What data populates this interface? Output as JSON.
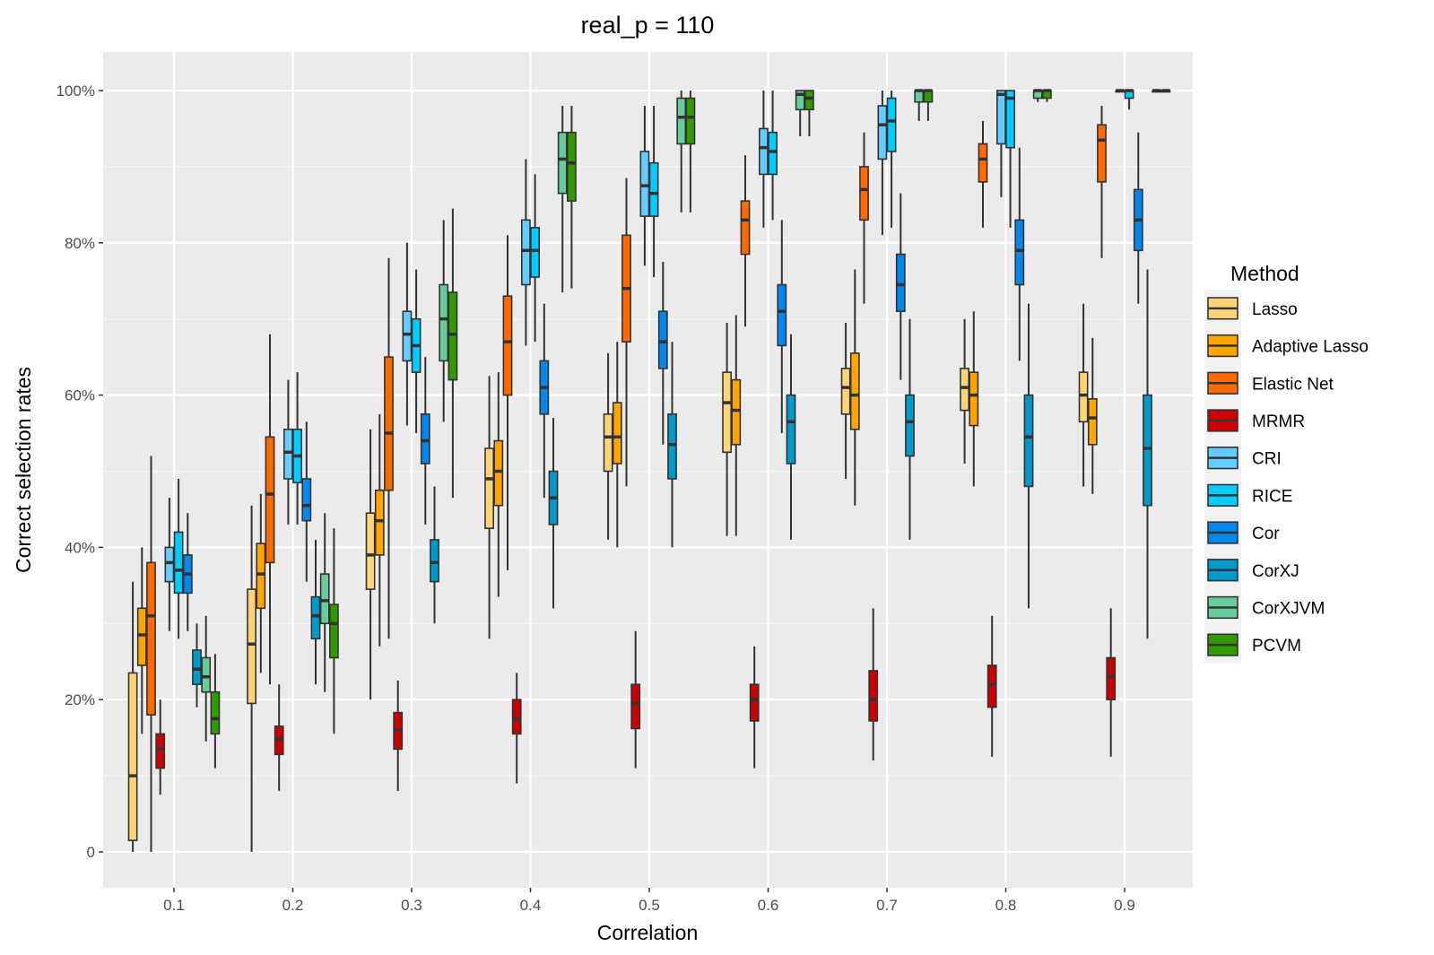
{
  "chart_data": {
    "type": "boxplot",
    "title": "real_p = 110",
    "xlabel": "Correlation",
    "ylabel": "Correct selection rates",
    "categories": [
      "0.1",
      "0.2",
      "0.3",
      "0.4",
      "0.5",
      "0.6",
      "0.7",
      "0.8",
      "0.9"
    ],
    "y_ticks": [
      0,
      20,
      40,
      60,
      80,
      100
    ],
    "y_tick_labels": [
      "0",
      "20%",
      "40%",
      "60%",
      "80%",
      "100%"
    ],
    "ylim": [
      -5,
      105
    ],
    "grid": true,
    "legend": {
      "title": "Method",
      "position": "right"
    },
    "series": [
      {
        "name": "Lasso",
        "color": "#FFD479",
        "boxes": [
          {
            "min": 0,
            "q1": 1.5,
            "median": 10,
            "q3": 23.5,
            "max": 35.5
          },
          {
            "min": 0,
            "q1": 19.5,
            "median": 27.3,
            "q3": 34.5,
            "max": 45.5
          },
          {
            "min": 20,
            "q1": 34.5,
            "median": 39,
            "q3": 44.5,
            "max": 55.5
          },
          {
            "min": 28,
            "q1": 42.5,
            "median": 49,
            "q3": 53,
            "max": 62.5
          },
          {
            "min": 41,
            "q1": 50,
            "median": 54.5,
            "q3": 57.5,
            "max": 65.5
          },
          {
            "min": 41.5,
            "q1": 52.5,
            "median": 59,
            "q3": 63,
            "max": 69.5
          },
          {
            "min": 49,
            "q1": 57.5,
            "median": 61,
            "q3": 63.5,
            "max": 69.5
          },
          {
            "min": 51,
            "q1": 58,
            "median": 61,
            "q3": 63.5,
            "max": 70
          },
          {
            "min": 48,
            "q1": 56.5,
            "median": 60,
            "q3": 63,
            "max": 72
          }
        ]
      },
      {
        "name": "Adaptive Lasso",
        "color": "#FFA500",
        "boxes": [
          {
            "min": 15.5,
            "q1": 24.5,
            "median": 28.5,
            "q3": 32,
            "max": 40
          },
          {
            "min": 23.5,
            "q1": 32,
            "median": 36.5,
            "q3": 40.5,
            "max": 47
          },
          {
            "min": 27,
            "q1": 39,
            "median": 43.5,
            "q3": 47.5,
            "max": 57.5
          },
          {
            "min": 33.5,
            "q1": 45.5,
            "median": 50,
            "q3": 54,
            "max": 63
          },
          {
            "min": 40,
            "q1": 51,
            "median": 54.5,
            "q3": 59,
            "max": 67
          },
          {
            "min": 41.5,
            "q1": 53.5,
            "median": 58,
            "q3": 62,
            "max": 70.5
          },
          {
            "min": 45.5,
            "q1": 55.5,
            "median": 60,
            "q3": 65.5,
            "max": 76.5
          },
          {
            "min": 48,
            "q1": 56,
            "median": 60,
            "q3": 63,
            "max": 71
          },
          {
            "min": 47,
            "q1": 53.5,
            "median": 57,
            "q3": 59.5,
            "max": 67.5
          }
        ]
      },
      {
        "name": "Elastic Net",
        "color": "#FF6A00",
        "boxes": [
          {
            "min": 0,
            "q1": 18,
            "median": 31,
            "q3": 38,
            "max": 52
          },
          {
            "min": 22,
            "q1": 38,
            "median": 47,
            "q3": 54.5,
            "max": 68
          },
          {
            "min": 28,
            "q1": 47.5,
            "median": 55,
            "q3": 65,
            "max": 78
          },
          {
            "min": 37,
            "q1": 60,
            "median": 67,
            "q3": 73,
            "max": 81
          },
          {
            "min": 48,
            "q1": 67,
            "median": 74,
            "q3": 81,
            "max": 88.5
          },
          {
            "min": 69,
            "q1": 78.5,
            "median": 83,
            "q3": 85.5,
            "max": 91.5
          },
          {
            "min": 72,
            "q1": 83,
            "median": 87,
            "q3": 90,
            "max": 94.5
          },
          {
            "min": 82,
            "q1": 88,
            "median": 91,
            "q3": 93,
            "max": 96
          },
          {
            "min": 78,
            "q1": 88,
            "median": 93.5,
            "q3": 95.5,
            "max": 98
          }
        ]
      },
      {
        "name": "MRMR",
        "color": "#CC0000",
        "boxes": [
          {
            "min": 7.5,
            "q1": 11,
            "median": 13.5,
            "q3": 15.5,
            "max": 20
          },
          {
            "min": 8,
            "q1": 12.8,
            "median": 14.8,
            "q3": 16.5,
            "max": 22
          },
          {
            "min": 8,
            "q1": 13.5,
            "median": 16,
            "q3": 18.3,
            "max": 22.5
          },
          {
            "min": 9,
            "q1": 15.5,
            "median": 17.5,
            "q3": 20,
            "max": 23.5
          },
          {
            "min": 11,
            "q1": 16.2,
            "median": 19.5,
            "q3": 22,
            "max": 29
          },
          {
            "min": 11,
            "q1": 17.2,
            "median": 20,
            "q3": 22,
            "max": 27
          },
          {
            "min": 12,
            "q1": 17.2,
            "median": 20,
            "q3": 23.8,
            "max": 32
          },
          {
            "min": 12.5,
            "q1": 19,
            "median": 22,
            "q3": 24.5,
            "max": 31
          },
          {
            "min": 12.5,
            "q1": 20,
            "median": 23,
            "q3": 25.5,
            "max": 32
          }
        ]
      },
      {
        "name": "CRI",
        "color": "#66CCFF",
        "boxes": [
          {
            "min": 29,
            "q1": 35.5,
            "median": 38,
            "q3": 40,
            "max": 46.5
          },
          {
            "min": 43,
            "q1": 49,
            "median": 52.5,
            "q3": 55.5,
            "max": 62
          },
          {
            "min": 56,
            "q1": 64.5,
            "median": 68,
            "q3": 71,
            "max": 80
          },
          {
            "min": 66.5,
            "q1": 74.5,
            "median": 79,
            "q3": 83,
            "max": 91
          },
          {
            "min": 77,
            "q1": 83.5,
            "median": 87.5,
            "q3": 92,
            "max": 98
          },
          {
            "min": 82,
            "q1": 89,
            "median": 92.5,
            "q3": 95,
            "max": 100
          },
          {
            "min": 81,
            "q1": 91,
            "median": 95.5,
            "q3": 98,
            "max": 100
          },
          {
            "min": 86,
            "q1": 93,
            "median": 99.5,
            "q3": 100,
            "max": 100
          },
          {
            "min": 100,
            "q1": 100,
            "median": 100,
            "q3": 100,
            "max": 100
          }
        ]
      },
      {
        "name": "RICE",
        "color": "#00CCFF",
        "boxes": [
          {
            "min": 28,
            "q1": 34,
            "median": 37,
            "q3": 42,
            "max": 49
          },
          {
            "min": 43,
            "q1": 48.5,
            "median": 52,
            "q3": 55.5,
            "max": 63
          },
          {
            "min": 55,
            "q1": 63,
            "median": 66.5,
            "q3": 70,
            "max": 76.5
          },
          {
            "min": 67,
            "q1": 75.5,
            "median": 79,
            "q3": 82,
            "max": 89
          },
          {
            "min": 75.5,
            "q1": 83.5,
            "median": 86.5,
            "q3": 90.5,
            "max": 98
          },
          {
            "min": 83,
            "q1": 89,
            "median": 92,
            "q3": 94.5,
            "max": 100
          },
          {
            "min": 82,
            "q1": 92,
            "median": 96,
            "q3": 99,
            "max": 100
          },
          {
            "min": 82,
            "q1": 92.5,
            "median": 99,
            "q3": 100,
            "max": 100
          },
          {
            "min": 97.5,
            "q1": 99,
            "median": 100,
            "q3": 100,
            "max": 100
          }
        ]
      },
      {
        "name": "Cor",
        "color": "#0088EE",
        "boxes": [
          {
            "min": 29,
            "q1": 34,
            "median": 36.5,
            "q3": 39,
            "max": 44.5
          },
          {
            "min": 35.5,
            "q1": 43.5,
            "median": 45.5,
            "q3": 49,
            "max": 56.5
          },
          {
            "min": 43,
            "q1": 51,
            "median": 54,
            "q3": 57.5,
            "max": 65
          },
          {
            "min": 46.5,
            "q1": 57.5,
            "median": 61,
            "q3": 64.5,
            "max": 72
          },
          {
            "min": 53.5,
            "q1": 63.5,
            "median": 67,
            "q3": 71,
            "max": 77.5
          },
          {
            "min": 55,
            "q1": 66.5,
            "median": 71,
            "q3": 74.5,
            "max": 83
          },
          {
            "min": 62,
            "q1": 71,
            "median": 74.5,
            "q3": 78.5,
            "max": 86.5
          },
          {
            "min": 64.5,
            "q1": 74.5,
            "median": 79,
            "q3": 83,
            "max": 92.5
          },
          {
            "min": 72,
            "q1": 79,
            "median": 83,
            "q3": 87,
            "max": 94.5
          }
        ]
      },
      {
        "name": "CorXJ",
        "color": "#0099CC",
        "boxes": [
          {
            "min": 19,
            "q1": 22,
            "median": 24,
            "q3": 26.5,
            "max": 30
          },
          {
            "min": 22,
            "q1": 28,
            "median": 31,
            "q3": 33.5,
            "max": 41
          },
          {
            "min": 30,
            "q1": 35.5,
            "median": 38,
            "q3": 41,
            "max": 48
          },
          {
            "min": 32,
            "q1": 43,
            "median": 46.5,
            "q3": 50,
            "max": 57
          },
          {
            "min": 40,
            "q1": 49,
            "median": 53.5,
            "q3": 57.5,
            "max": 67
          },
          {
            "min": 41,
            "q1": 51,
            "median": 56.5,
            "q3": 60,
            "max": 68
          },
          {
            "min": 41,
            "q1": 52,
            "median": 56.5,
            "q3": 60,
            "max": 70
          },
          {
            "min": 32,
            "q1": 48,
            "median": 54.5,
            "q3": 60,
            "max": 72
          },
          {
            "min": 28,
            "q1": 45.5,
            "median": 53,
            "q3": 60,
            "max": 76.5
          }
        ]
      },
      {
        "name": "CorXJVM",
        "color": "#66CC99",
        "boxes": [
          {
            "min": 14.5,
            "q1": 21,
            "median": 23,
            "q3": 25.5,
            "max": 31
          },
          {
            "min": 21,
            "q1": 30,
            "median": 33,
            "q3": 36.5,
            "max": 44.5
          },
          {
            "min": 56.5,
            "q1": 64.5,
            "median": 70,
            "q3": 74.5,
            "max": 83
          },
          {
            "min": 73.5,
            "q1": 86.5,
            "median": 91,
            "q3": 94.5,
            "max": 98
          },
          {
            "min": 84,
            "q1": 93,
            "median": 96.5,
            "q3": 99,
            "max": 100
          },
          {
            "min": 94,
            "q1": 97.5,
            "median": 99.5,
            "q3": 100,
            "max": 100
          },
          {
            "min": 96,
            "q1": 98.5,
            "median": 100,
            "q3": 100,
            "max": 100
          },
          {
            "min": 98.5,
            "q1": 99,
            "median": 100,
            "q3": 100,
            "max": 100
          },
          {
            "min": 100,
            "q1": 100,
            "median": 100,
            "q3": 100,
            "max": 100
          }
        ]
      },
      {
        "name": "PCVM",
        "color": "#339900",
        "boxes": [
          {
            "min": 11,
            "q1": 15.5,
            "median": 17.5,
            "q3": 21,
            "max": 26
          },
          {
            "min": 15.5,
            "q1": 25.5,
            "median": 30,
            "q3": 32.5,
            "max": 42.5
          },
          {
            "min": 46.5,
            "q1": 62,
            "median": 68,
            "q3": 73.5,
            "max": 84.5
          },
          {
            "min": 74,
            "q1": 85.5,
            "median": 90.5,
            "q3": 94.5,
            "max": 98
          },
          {
            "min": 84,
            "q1": 93,
            "median": 96.5,
            "q3": 99,
            "max": 100
          },
          {
            "min": 94,
            "q1": 97.5,
            "median": 99,
            "q3": 100,
            "max": 100
          },
          {
            "min": 96,
            "q1": 98.5,
            "median": 100,
            "q3": 100,
            "max": 100
          },
          {
            "min": 98.5,
            "q1": 99,
            "median": 100,
            "q3": 100,
            "max": 100
          },
          {
            "min": 100,
            "q1": 100,
            "median": 100,
            "q3": 100,
            "max": 100
          }
        ]
      }
    ]
  }
}
